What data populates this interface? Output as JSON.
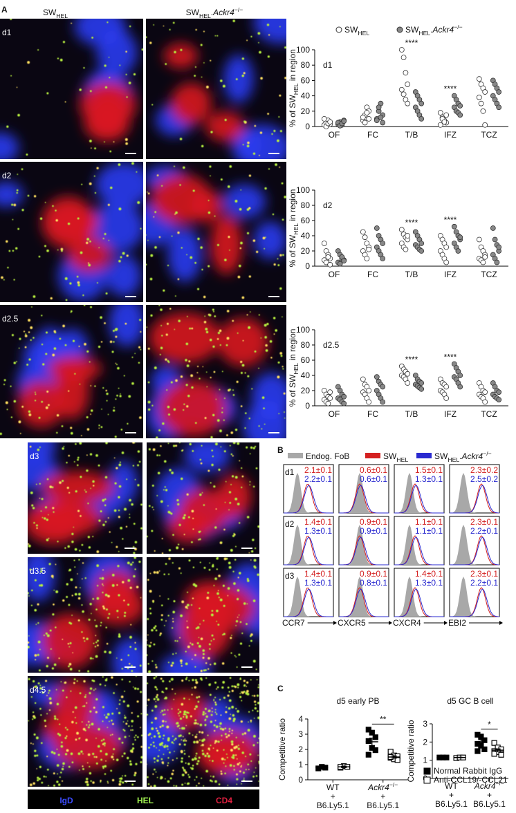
{
  "panel_a": {
    "label": "A",
    "columns": [
      [
        "SW",
        "HEL"
      ],
      [
        "SW",
        "HEL",
        ".",
        "Ackr4",
        "−/−"
      ]
    ],
    "rows": [
      "d1",
      "d2",
      "d2.5",
      "d3",
      "d3.5",
      "d4.5"
    ],
    "stain_legend": [
      "IgD",
      "HEL",
      "CD4"
    ],
    "dot_legend": [
      [
        "SW",
        "HEL"
      ],
      [
        "SW",
        "HEL",
        ".",
        "Ackr4",
        "−/−"
      ]
    ]
  },
  "panel_b": {
    "label": "B",
    "legend": [
      [
        "Endog. FoB"
      ],
      [
        "SW",
        "HEL"
      ],
      [
        "SW",
        "HEL",
        ".",
        "Ackr4",
        "−/−"
      ]
    ],
    "colors": [
      "#a8a8a8",
      "#d42020",
      "#2a2ad0"
    ],
    "markers": [
      "CCR7",
      "CXCR5",
      "CXCR4",
      "EBI2"
    ],
    "rows": [
      {
        "day": "d1",
        "values": [
          [
            "2.1±0.1",
            "2.2±0.1"
          ],
          [
            "0.6±0.1",
            "0.6±0.1"
          ],
          [
            "1.5±0.1",
            "1.3±0.1"
          ],
          [
            "2.3±0.2",
            "2.5±0.2"
          ]
        ]
      },
      {
        "day": "d2",
        "values": [
          [
            "1.4±0.1",
            "1.3±0.1"
          ],
          [
            "0.9±0.1",
            "0.9±0.1"
          ],
          [
            "1.1±0.1",
            "1.1±0.1"
          ],
          [
            "2.3±0.1",
            "2.2±0.1"
          ]
        ]
      },
      {
        "day": "d3",
        "values": [
          [
            "1.4±0.1",
            "1.3±0.1"
          ],
          [
            "0.9±0.1",
            "0.8±0.1"
          ],
          [
            "1.4±0.1",
            "1.3±0.1"
          ],
          [
            "2.3±0.1",
            "2.2±0.1"
          ]
        ]
      }
    ]
  },
  "panel_c": {
    "label": "C"
  },
  "chart_data": [
    {
      "type": "dot",
      "marker": "circle",
      "title": "d1",
      "y_label": [
        "% of SW",
        "HEL",
        " in region"
      ],
      "categories": [
        "OF",
        "FC",
        "T/B",
        "IFZ",
        "TCZ"
      ],
      "ylim": [
        0,
        100
      ],
      "yticks": [
        0,
        20,
        40,
        60,
        80,
        100
      ],
      "significance": [
        null,
        null,
        "****",
        "****",
        null
      ],
      "series": [
        {
          "color": "#ffffff",
          "values": [
            [
              2,
              5,
              8,
              3,
              10,
              0,
              4,
              6
            ],
            [
              8,
              15,
              25,
              20,
              12,
              5,
              18,
              10
            ],
            [
              100,
              90,
              70,
              55,
              48,
              42,
              35,
              30
            ],
            [
              18,
              12,
              8,
              5,
              2,
              10,
              6,
              15
            ],
            [
              62,
              55,
              50,
              45,
              38,
              30,
              20,
              2
            ]
          ]
        },
        {
          "color": "#888888",
          "values": [
            [
              3,
              6,
              2,
              8,
              5,
              1,
              4,
              7
            ],
            [
              10,
              20,
              30,
              15,
              8,
              25,
              12,
              5
            ],
            [
              45,
              40,
              35,
              30,
              25,
              20,
              15,
              10
            ],
            [
              40,
              35,
              30,
              27,
              25,
              20,
              18,
              15
            ],
            [
              60,
              55,
              50,
              45,
              40,
              35,
              30,
              25
            ]
          ]
        }
      ]
    },
    {
      "type": "dot",
      "marker": "circle",
      "title": "d2",
      "y_label": [
        "% of SW",
        "HEL",
        " in region"
      ],
      "categories": [
        "OF",
        "FC",
        "T/B",
        "IFZ",
        "TCZ"
      ],
      "ylim": [
        0,
        100
      ],
      "yticks": [
        0,
        20,
        40,
        60,
        80,
        100
      ],
      "significance": [
        null,
        null,
        "****",
        "****",
        null
      ],
      "series": [
        {
          "color": "#ffffff",
          "values": [
            [
              30,
              20,
              15,
              10,
              8,
              5,
              12,
              2
            ],
            [
              45,
              38,
              30,
              25,
              20,
              15,
              10,
              22
            ],
            [
              48,
              42,
              38,
              35,
              30,
              25,
              22,
              40
            ],
            [
              40,
              35,
              30,
              25,
              20,
              15,
              10,
              5
            ],
            [
              35,
              25,
              20,
              15,
              10,
              8,
              5,
              12
            ]
          ]
        },
        {
          "color": "#888888",
          "values": [
            [
              20,
              15,
              10,
              8,
              5,
              3,
              12,
              7
            ],
            [
              50,
              40,
              35,
              30,
              25,
              20,
              15,
              10
            ],
            [
              45,
              40,
              35,
              30,
              28,
              25,
              22,
              20
            ],
            [
              52,
              45,
              40,
              35,
              30,
              25,
              20,
              38
            ],
            [
              50,
              35,
              28,
              20,
              15,
              10,
              5,
              25
            ]
          ]
        }
      ]
    },
    {
      "type": "dot",
      "marker": "circle",
      "title": "d2.5",
      "y_label": [
        "% of SW",
        "HEL",
        " in region"
      ],
      "categories": [
        "OF",
        "FC",
        "T/B",
        "IFZ",
        "TCZ"
      ],
      "ylim": [
        0,
        100
      ],
      "yticks": [
        0,
        20,
        40,
        60,
        80,
        100
      ],
      "significance": [
        null,
        null,
        "****",
        "****",
        null
      ],
      "series": [
        {
          "color": "#ffffff",
          "values": [
            [
              20,
              15,
              12,
              10,
              8,
              5,
              3,
              18
            ],
            [
              35,
              28,
              25,
              20,
              18,
              15,
              10,
              5
            ],
            [
              52,
              48,
              45,
              42,
              40,
              38,
              35,
              30
            ],
            [
              35,
              30,
              28,
              25,
              20,
              18,
              15,
              10
            ],
            [
              30,
              25,
              20,
              18,
              15,
              12,
              10,
              5
            ]
          ]
        },
        {
          "color": "#888888",
          "values": [
            [
              25,
              20,
              15,
              12,
              10,
              8,
              5,
              3
            ],
            [
              38,
              32,
              28,
              25,
              20,
              15,
              10,
              5
            ],
            [
              40,
              35,
              32,
              30,
              28,
              26,
              24,
              22
            ],
            [
              55,
              50,
              45,
              40,
              38,
              35,
              30,
              25
            ],
            [
              30,
              25,
              20,
              18,
              15,
              12,
              10,
              8
            ]
          ]
        }
      ]
    },
    {
      "type": "dot",
      "marker": "square",
      "title": "d5 early PB",
      "y_label": [
        "Competitive ratio"
      ],
      "group_labels": [
        [
          "WT",
          "+",
          "B6.Ly5.1"
        ],
        [
          [
            "Ackr4",
            "−/−"
          ],
          "+",
          "B6.Ly5.1"
        ]
      ],
      "ylim": [
        0,
        4
      ],
      "yticks": [
        0,
        1,
        2,
        3,
        4
      ],
      "significance": [
        null,
        "**"
      ],
      "series": [
        {
          "color": "#000000",
          "values": [
            [
              0.75,
              0.85,
              0.8
            ],
            [
              3.3,
              3.1,
              2.8,
              2.55,
              2.1,
              1.95,
              1.65
            ]
          ],
          "mean": [
            0.8,
            2.5
          ],
          "sem": [
            0.05,
            0.25
          ]
        },
        {
          "color": "#ffffff",
          "values": [
            [
              0.8,
              0.9,
              0.85,
              0.85
            ],
            [
              1.85,
              1.6,
              1.55,
              1.45,
              1.35,
              1.3,
              1.5
            ]
          ],
          "mean": [
            0.85,
            1.5
          ],
          "sem": [
            0.05,
            0.08
          ]
        }
      ]
    },
    {
      "type": "dot",
      "marker": "square",
      "title": "d5 GC B cell",
      "y_label": [
        "Competitive ratio"
      ],
      "group_labels": [
        [
          "WT",
          "+",
          "B6.Ly5.1"
        ],
        [
          [
            "Ackr4",
            "−/−"
          ],
          "+",
          "B6.Ly5.1"
        ]
      ],
      "ylim": [
        0,
        3
      ],
      "yticks": [
        0,
        1,
        2,
        3
      ],
      "significance": [
        null,
        "*"
      ],
      "series": [
        {
          "name": "Normal Rabbit IgG",
          "color": "#000000",
          "values": [
            [
              1.15,
              1.15,
              1.15
            ],
            [
              2.4,
              2.3,
              2.1,
              1.9,
              1.8,
              1.6,
              1.5
            ]
          ],
          "mean": [
            1.15,
            2.0
          ],
          "sem": [
            0.02,
            0.13
          ]
        },
        {
          "name": "Anti-CCL19/-CCL21",
          "color": "#ffffff",
          "values": [
            [
              1.12,
              1.15,
              1.15
            ],
            [
              1.95,
              1.7,
              1.6,
              1.5,
              1.45,
              1.3,
              1.35
            ]
          ],
          "mean": [
            1.15,
            1.55
          ],
          "sem": [
            0.02,
            0.08
          ]
        }
      ]
    }
  ]
}
